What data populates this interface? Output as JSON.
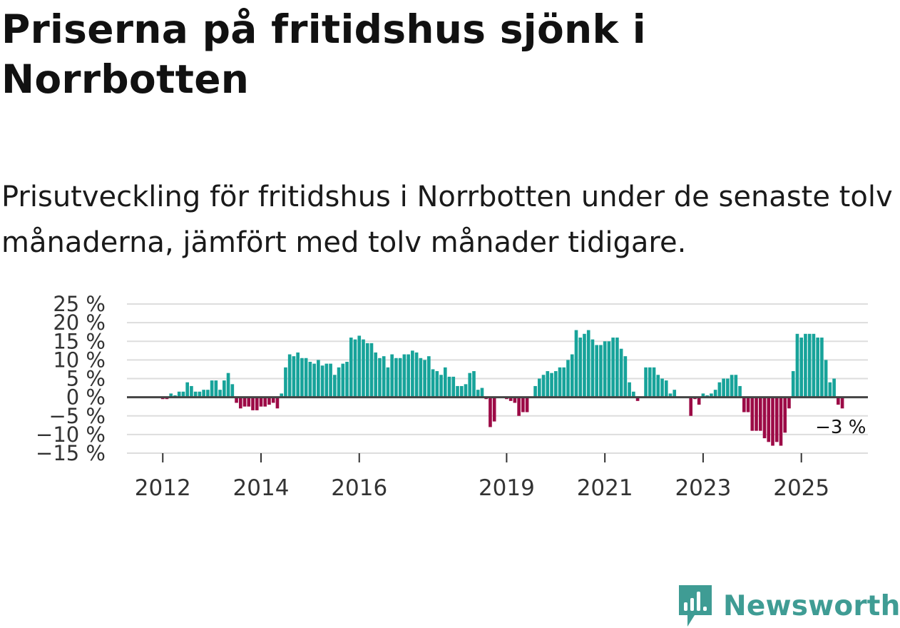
{
  "title": "Priserna på fritidshus sjönk i Norrbotten",
  "subtitle": "Prisutveckling för fritidshus i Norrbotten under de senaste tolv månaderna, jämfört med tolv månader tidigare.",
  "brand": {
    "name": "Newsworthy",
    "icon": "newsworthy-logo-icon",
    "color": "#3f9c94"
  },
  "colors": {
    "positive": "#17a39a",
    "negative": "#9c0a46",
    "zero_line": "#444444",
    "grid": "#dddddd"
  },
  "chart_data": {
    "type": "bar",
    "title": "Priserna på fritidshus sjönk i Norrbotten",
    "ylabel": "",
    "xlabel": "",
    "ylim": [
      -15,
      25
    ],
    "y_ticks": [
      25,
      20,
      15,
      10,
      5,
      0,
      -5,
      -10,
      -15
    ],
    "y_tick_labels": [
      "25 %",
      "20 %",
      "15 %",
      "10 %",
      "5 %",
      "0 %",
      "−5 %",
      "−10 %",
      "−15 %"
    ],
    "x_ticks": [
      {
        "label": "2012",
        "index": 8
      },
      {
        "label": "2014",
        "index": 32
      },
      {
        "label": "2016",
        "index": 56
      },
      {
        "label": "2019",
        "index": 92
      },
      {
        "label": "2021",
        "index": 116
      },
      {
        "label": "2023",
        "index": 140
      },
      {
        "label": "2025",
        "index": 164
      }
    ],
    "start_month": "2011-05",
    "last_value_label": "−3 %",
    "values": [
      0,
      0,
      0,
      0,
      0,
      0,
      0,
      0,
      -0.5,
      -0.5,
      1,
      0.5,
      1.5,
      1.5,
      4,
      3,
      1.5,
      1.5,
      2,
      2,
      4.5,
      4.5,
      2,
      4.5,
      6.5,
      3.5,
      -1.5,
      -3,
      -2.5,
      -2.5,
      -3.5,
      -3.5,
      -2.5,
      -2.5,
      -2,
      -1.5,
      -3,
      1,
      8,
      11.5,
      11,
      12,
      10.5,
      10.5,
      9.5,
      9,
      10,
      8.5,
      9,
      9,
      6,
      8,
      9,
      9.5,
      16,
      15.5,
      16.5,
      15.5,
      14.5,
      14.5,
      12,
      10.5,
      11,
      8,
      11.5,
      10.5,
      10.5,
      11.5,
      11.5,
      12.5,
      12,
      10.5,
      10,
      11,
      7.5,
      7,
      6,
      8,
      5.5,
      5.5,
      3,
      3,
      3.5,
      6.5,
      7,
      2,
      2.5,
      -0.5,
      -8,
      -6.5,
      0,
      0,
      -0.5,
      -1,
      -1.5,
      -5,
      -4,
      -4,
      0,
      3,
      5,
      6,
      7,
      6.5,
      7,
      8,
      8,
      10,
      11.5,
      18,
      16,
      17,
      18,
      15.5,
      14,
      14,
      15,
      15,
      16,
      16,
      13,
      11,
      4,
      1.5,
      -1,
      0,
      8,
      8,
      8,
      6,
      5,
      4.5,
      1,
      2,
      0,
      0,
      0,
      -5,
      -0.5,
      -2,
      1,
      0.5,
      1,
      2,
      4,
      5,
      5,
      6,
      6,
      3,
      -4,
      -4,
      -9,
      -9,
      -9,
      -11,
      -12,
      -13,
      -12,
      -13,
      -9.5,
      -3,
      7,
      17,
      16,
      17,
      17,
      17,
      16,
      16,
      10,
      4,
      5,
      -2,
      -3
    ]
  }
}
